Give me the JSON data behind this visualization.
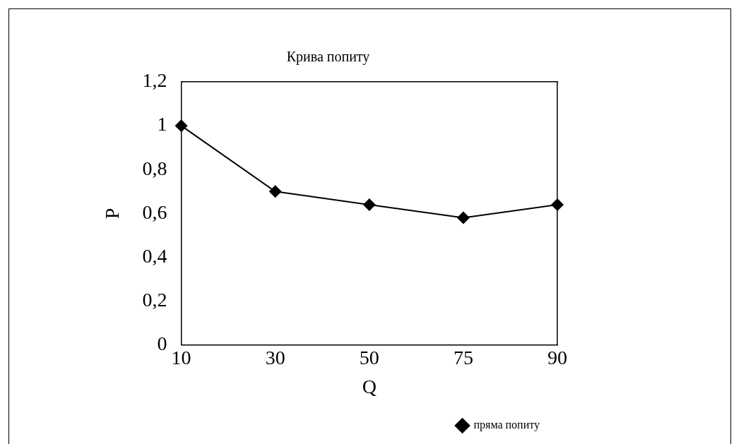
{
  "chart_data": {
    "type": "line",
    "title": "Крива попиту",
    "xlabel": "Q",
    "ylabel": "P",
    "categories": [
      "10",
      "30",
      "50",
      "75",
      "90"
    ],
    "series": [
      {
        "name": "пряма попиту",
        "color": "#000000",
        "values": [
          1,
          0.7,
          0.64,
          0.58,
          0.64
        ]
      }
    ],
    "ylim": [
      0,
      1.2
    ],
    "yticks": [
      0,
      {
        "value": 0.2,
        "label": "0,2"
      },
      {
        "value": 0.4,
        "label": "0,4"
      },
      {
        "value": 0.6,
        "label": "0,6"
      },
      {
        "value": 0.8,
        "label": "0,8"
      },
      1,
      {
        "value": 1.2,
        "label": "1,2"
      }
    ],
    "grid": false,
    "legend": "bottom right",
    "marker": "diamond",
    "line_style": "solid"
  }
}
